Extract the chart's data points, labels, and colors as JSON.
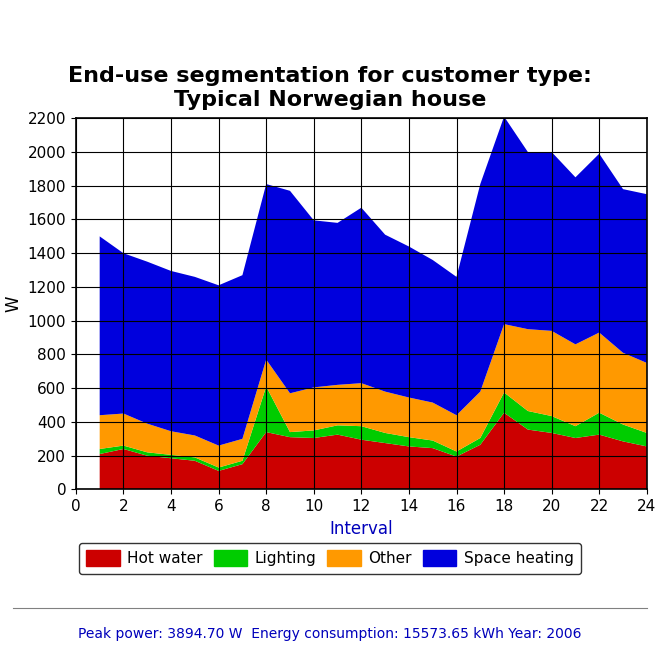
{
  "title": "End-use segmentation for customer type:\nTypical Norwegian house",
  "xlabel": "Interval",
  "ylabel": "W",
  "xlim": [
    0,
    24
  ],
  "ylim": [
    0,
    2200
  ],
  "xticks": [
    0,
    2,
    4,
    6,
    8,
    10,
    12,
    14,
    16,
    18,
    20,
    22,
    24
  ],
  "yticks": [
    0,
    200,
    400,
    600,
    800,
    1000,
    1200,
    1400,
    1600,
    1800,
    2000,
    2200
  ],
  "x": [
    1,
    2,
    3,
    4,
    5,
    6,
    7,
    8,
    9,
    10,
    11,
    12,
    13,
    14,
    15,
    16,
    17,
    18,
    19,
    20,
    21,
    22,
    23,
    24
  ],
  "hot_water": [
    210,
    240,
    200,
    185,
    170,
    110,
    150,
    340,
    310,
    305,
    325,
    295,
    275,
    255,
    245,
    195,
    265,
    455,
    355,
    335,
    305,
    325,
    285,
    255
  ],
  "lighting": [
    30,
    20,
    20,
    20,
    20,
    20,
    20,
    270,
    30,
    45,
    55,
    80,
    60,
    55,
    45,
    30,
    40,
    120,
    110,
    100,
    70,
    130,
    100,
    80
  ],
  "other": [
    200,
    190,
    170,
    140,
    130,
    130,
    130,
    160,
    230,
    255,
    240,
    255,
    245,
    235,
    225,
    215,
    275,
    405,
    485,
    505,
    485,
    475,
    425,
    415
  ],
  "space_heating": [
    1060,
    950,
    960,
    950,
    940,
    950,
    970,
    1040,
    1200,
    990,
    960,
    1040,
    930,
    895,
    845,
    820,
    1230,
    1230,
    1050,
    1060,
    990,
    1060,
    970,
    1000
  ],
  "hot_water_color": "#cc0000",
  "lighting_color": "#00cc00",
  "other_color": "#ff9900",
  "space_heating_color": "#0000dd",
  "background_color": "#ffffff",
  "footer_text": "Peak power: 3894.70 W  Energy consumption: 15573.65 kWh Year: 2006",
  "footer_color": "#0000bb",
  "title_fontsize": 16,
  "axis_label_fontsize": 12,
  "tick_fontsize": 11,
  "legend_fontsize": 11,
  "footer_fontsize": 10
}
